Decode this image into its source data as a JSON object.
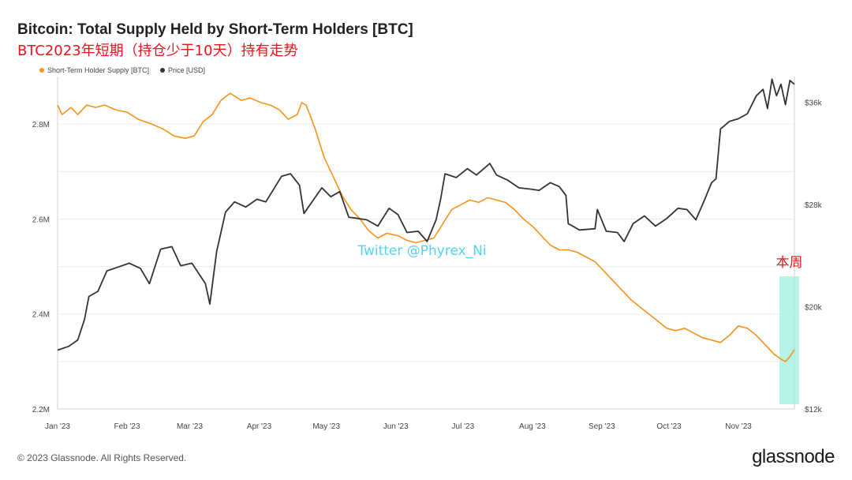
{
  "header": {
    "title": "Bitcoin: Total Supply Held by Short-Term Holders [BTC]",
    "subtitle": "BTC2023年短期（持仓少于10天）持有走势"
  },
  "footer": {
    "copyright": "© 2023 Glassnode. All Rights Reserved.",
    "brand": "glassnode"
  },
  "watermark": "Twitter @Phyrex_Ni",
  "chart_data": {
    "type": "line",
    "legend_position": "top-left",
    "grid": true,
    "x_axis": {
      "range": [
        "2023-01-01",
        "2023-11-26"
      ],
      "ticks": [
        {
          "label": "Jan '23",
          "date": "2023-01-01"
        },
        {
          "label": "Feb '23",
          "date": "2023-02-01"
        },
        {
          "label": "Mar '23",
          "date": "2023-03-01"
        },
        {
          "label": "Apr '23",
          "date": "2023-04-01"
        },
        {
          "label": "May '23",
          "date": "2023-05-01"
        },
        {
          "label": "Jun '23",
          "date": "2023-06-01"
        },
        {
          "label": "Jul '23",
          "date": "2023-07-01"
        },
        {
          "label": "Aug '23",
          "date": "2023-08-01"
        },
        {
          "label": "Sep '23",
          "date": "2023-09-01"
        },
        {
          "label": "Oct '23",
          "date": "2023-10-01"
        },
        {
          "label": "Nov '23",
          "date": "2023-11-01"
        }
      ]
    },
    "y_left": {
      "range": [
        2200000,
        2900000
      ],
      "ticks": [
        {
          "label": "2.2M",
          "value": 2200000
        },
        {
          "label": "2.4M",
          "value": 2400000
        },
        {
          "label": "2.6M",
          "value": 2600000
        },
        {
          "label": "2.8M",
          "value": 2800000
        }
      ]
    },
    "y_right": {
      "range": [
        12000,
        38000
      ],
      "ticks": [
        {
          "label": "$12k",
          "value": 12000
        },
        {
          "label": "$20k",
          "value": 20000
        },
        {
          "label": "$28k",
          "value": 28000
        },
        {
          "label": "$36k",
          "value": 36000
        }
      ]
    },
    "series": [
      {
        "name": "Short-Term Holder Supply [BTC]",
        "axis": "left",
        "color": "#f7931a",
        "points": [
          [
            "2023-01-01",
            2840000
          ],
          [
            "2023-01-03",
            2820000
          ],
          [
            "2023-01-07",
            2835000
          ],
          [
            "2023-01-10",
            2820000
          ],
          [
            "2023-01-14",
            2840000
          ],
          [
            "2023-01-18",
            2835000
          ],
          [
            "2023-01-22",
            2840000
          ],
          [
            "2023-01-27",
            2830000
          ],
          [
            "2023-02-01",
            2825000
          ],
          [
            "2023-02-06",
            2810000
          ],
          [
            "2023-02-12",
            2800000
          ],
          [
            "2023-02-17",
            2790000
          ],
          [
            "2023-02-22",
            2775000
          ],
          [
            "2023-02-27",
            2770000
          ],
          [
            "2023-03-03",
            2775000
          ],
          [
            "2023-03-07",
            2805000
          ],
          [
            "2023-03-11",
            2820000
          ],
          [
            "2023-03-15",
            2850000
          ],
          [
            "2023-03-19",
            2865000
          ],
          [
            "2023-03-24",
            2850000
          ],
          [
            "2023-03-28",
            2855000
          ],
          [
            "2023-04-02",
            2845000
          ],
          [
            "2023-04-06",
            2840000
          ],
          [
            "2023-04-10",
            2830000
          ],
          [
            "2023-04-14",
            2810000
          ],
          [
            "2023-04-18",
            2820000
          ],
          [
            "2023-04-20",
            2845000
          ],
          [
            "2023-04-22",
            2840000
          ],
          [
            "2023-04-26",
            2790000
          ],
          [
            "2023-04-30",
            2730000
          ],
          [
            "2023-05-04",
            2690000
          ],
          [
            "2023-05-08",
            2650000
          ],
          [
            "2023-05-12",
            2620000
          ],
          [
            "2023-05-16",
            2600000
          ],
          [
            "2023-05-20",
            2575000
          ],
          [
            "2023-05-24",
            2560000
          ],
          [
            "2023-05-28",
            2570000
          ],
          [
            "2023-06-02",
            2565000
          ],
          [
            "2023-06-06",
            2555000
          ],
          [
            "2023-06-10",
            2550000
          ],
          [
            "2023-06-14",
            2555000
          ],
          [
            "2023-06-18",
            2560000
          ],
          [
            "2023-06-22",
            2590000
          ],
          [
            "2023-06-26",
            2620000
          ],
          [
            "2023-06-30",
            2630000
          ],
          [
            "2023-07-04",
            2640000
          ],
          [
            "2023-07-08",
            2635000
          ],
          [
            "2023-07-12",
            2645000
          ],
          [
            "2023-07-16",
            2640000
          ],
          [
            "2023-07-20",
            2635000
          ],
          [
            "2023-07-24",
            2620000
          ],
          [
            "2023-07-28",
            2600000
          ],
          [
            "2023-08-01",
            2585000
          ],
          [
            "2023-08-05",
            2565000
          ],
          [
            "2023-08-09",
            2545000
          ],
          [
            "2023-08-13",
            2535000
          ],
          [
            "2023-08-17",
            2535000
          ],
          [
            "2023-08-21",
            2530000
          ],
          [
            "2023-08-25",
            2520000
          ],
          [
            "2023-08-29",
            2510000
          ],
          [
            "2023-09-02",
            2490000
          ],
          [
            "2023-09-06",
            2470000
          ],
          [
            "2023-09-10",
            2450000
          ],
          [
            "2023-09-14",
            2430000
          ],
          [
            "2023-09-18",
            2415000
          ],
          [
            "2023-09-22",
            2400000
          ],
          [
            "2023-09-26",
            2385000
          ],
          [
            "2023-09-30",
            2370000
          ],
          [
            "2023-10-04",
            2365000
          ],
          [
            "2023-10-08",
            2370000
          ],
          [
            "2023-10-12",
            2360000
          ],
          [
            "2023-10-16",
            2350000
          ],
          [
            "2023-10-20",
            2345000
          ],
          [
            "2023-10-24",
            2340000
          ],
          [
            "2023-10-28",
            2355000
          ],
          [
            "2023-11-01",
            2375000
          ],
          [
            "2023-11-05",
            2370000
          ],
          [
            "2023-11-09",
            2355000
          ],
          [
            "2023-11-13",
            2335000
          ],
          [
            "2023-11-17",
            2315000
          ],
          [
            "2023-11-20",
            2305000
          ],
          [
            "2023-11-22",
            2300000
          ],
          [
            "2023-11-24",
            2310000
          ],
          [
            "2023-11-26",
            2325000
          ]
        ]
      },
      {
        "name": "Price [USD]",
        "axis": "right",
        "color": "#333333",
        "points": [
          [
            "2023-01-01",
            16600
          ],
          [
            "2023-01-06",
            16900
          ],
          [
            "2023-01-10",
            17400
          ],
          [
            "2023-01-13",
            19000
          ],
          [
            "2023-01-15",
            20800
          ],
          [
            "2023-01-19",
            21200
          ],
          [
            "2023-01-23",
            22800
          ],
          [
            "2023-01-28",
            23100
          ],
          [
            "2023-02-02",
            23400
          ],
          [
            "2023-02-07",
            23000
          ],
          [
            "2023-02-11",
            21800
          ],
          [
            "2023-02-16",
            24500
          ],
          [
            "2023-02-21",
            24700
          ],
          [
            "2023-02-25",
            23200
          ],
          [
            "2023-03-02",
            23400
          ],
          [
            "2023-03-08",
            21800
          ],
          [
            "2023-03-10",
            20200
          ],
          [
            "2023-03-13",
            24300
          ],
          [
            "2023-03-17",
            27400
          ],
          [
            "2023-03-21",
            28200
          ],
          [
            "2023-03-26",
            27800
          ],
          [
            "2023-03-31",
            28400
          ],
          [
            "2023-04-04",
            28200
          ],
          [
            "2023-04-11",
            30200
          ],
          [
            "2023-04-15",
            30400
          ],
          [
            "2023-04-19",
            29500
          ],
          [
            "2023-04-21",
            27300
          ],
          [
            "2023-04-25",
            28300
          ],
          [
            "2023-04-29",
            29300
          ],
          [
            "2023-05-03",
            28600
          ],
          [
            "2023-05-07",
            29000
          ],
          [
            "2023-05-11",
            27000
          ],
          [
            "2023-05-15",
            26900
          ],
          [
            "2023-05-19",
            26800
          ],
          [
            "2023-05-24",
            26300
          ],
          [
            "2023-05-29",
            27700
          ],
          [
            "2023-06-02",
            27200
          ],
          [
            "2023-06-06",
            25800
          ],
          [
            "2023-06-11",
            25900
          ],
          [
            "2023-06-15",
            25100
          ],
          [
            "2023-06-19",
            26800
          ],
          [
            "2023-06-21",
            28400
          ],
          [
            "2023-06-23",
            30400
          ],
          [
            "2023-06-28",
            30100
          ],
          [
            "2023-07-03",
            30800
          ],
          [
            "2023-07-07",
            30300
          ],
          [
            "2023-07-13",
            31200
          ],
          [
            "2023-07-16",
            30300
          ],
          [
            "2023-07-21",
            29900
          ],
          [
            "2023-07-26",
            29300
          ],
          [
            "2023-07-31",
            29200
          ],
          [
            "2023-08-04",
            29100
          ],
          [
            "2023-08-09",
            29700
          ],
          [
            "2023-08-13",
            29400
          ],
          [
            "2023-08-16",
            28700
          ],
          [
            "2023-08-17",
            26500
          ],
          [
            "2023-08-22",
            26000
          ],
          [
            "2023-08-29",
            26100
          ],
          [
            "2023-08-30",
            27600
          ],
          [
            "2023-09-03",
            25900
          ],
          [
            "2023-09-08",
            25800
          ],
          [
            "2023-09-11",
            25100
          ],
          [
            "2023-09-15",
            26500
          ],
          [
            "2023-09-20",
            27100
          ],
          [
            "2023-09-25",
            26300
          ],
          [
            "2023-09-30",
            26900
          ],
          [
            "2023-10-05",
            27700
          ],
          [
            "2023-10-09",
            27600
          ],
          [
            "2023-10-13",
            26800
          ],
          [
            "2023-10-17",
            28400
          ],
          [
            "2023-10-20",
            29700
          ],
          [
            "2023-10-22",
            30000
          ],
          [
            "2023-10-24",
            33900
          ],
          [
            "2023-10-28",
            34500
          ],
          [
            "2023-11-01",
            34700
          ],
          [
            "2023-11-05",
            35100
          ],
          [
            "2023-11-09",
            36500
          ],
          [
            "2023-11-12",
            37000
          ],
          [
            "2023-11-14",
            35500
          ],
          [
            "2023-11-16",
            37800
          ],
          [
            "2023-11-18",
            36500
          ],
          [
            "2023-11-20",
            37400
          ],
          [
            "2023-11-22",
            35800
          ],
          [
            "2023-11-24",
            37700
          ],
          [
            "2023-11-26",
            37400
          ]
        ]
      }
    ],
    "annotations": [
      {
        "type": "highlight",
        "label": "本周",
        "from": "2023-11-20",
        "to": "2023-11-26",
        "color": "#9ff0dc"
      }
    ]
  }
}
